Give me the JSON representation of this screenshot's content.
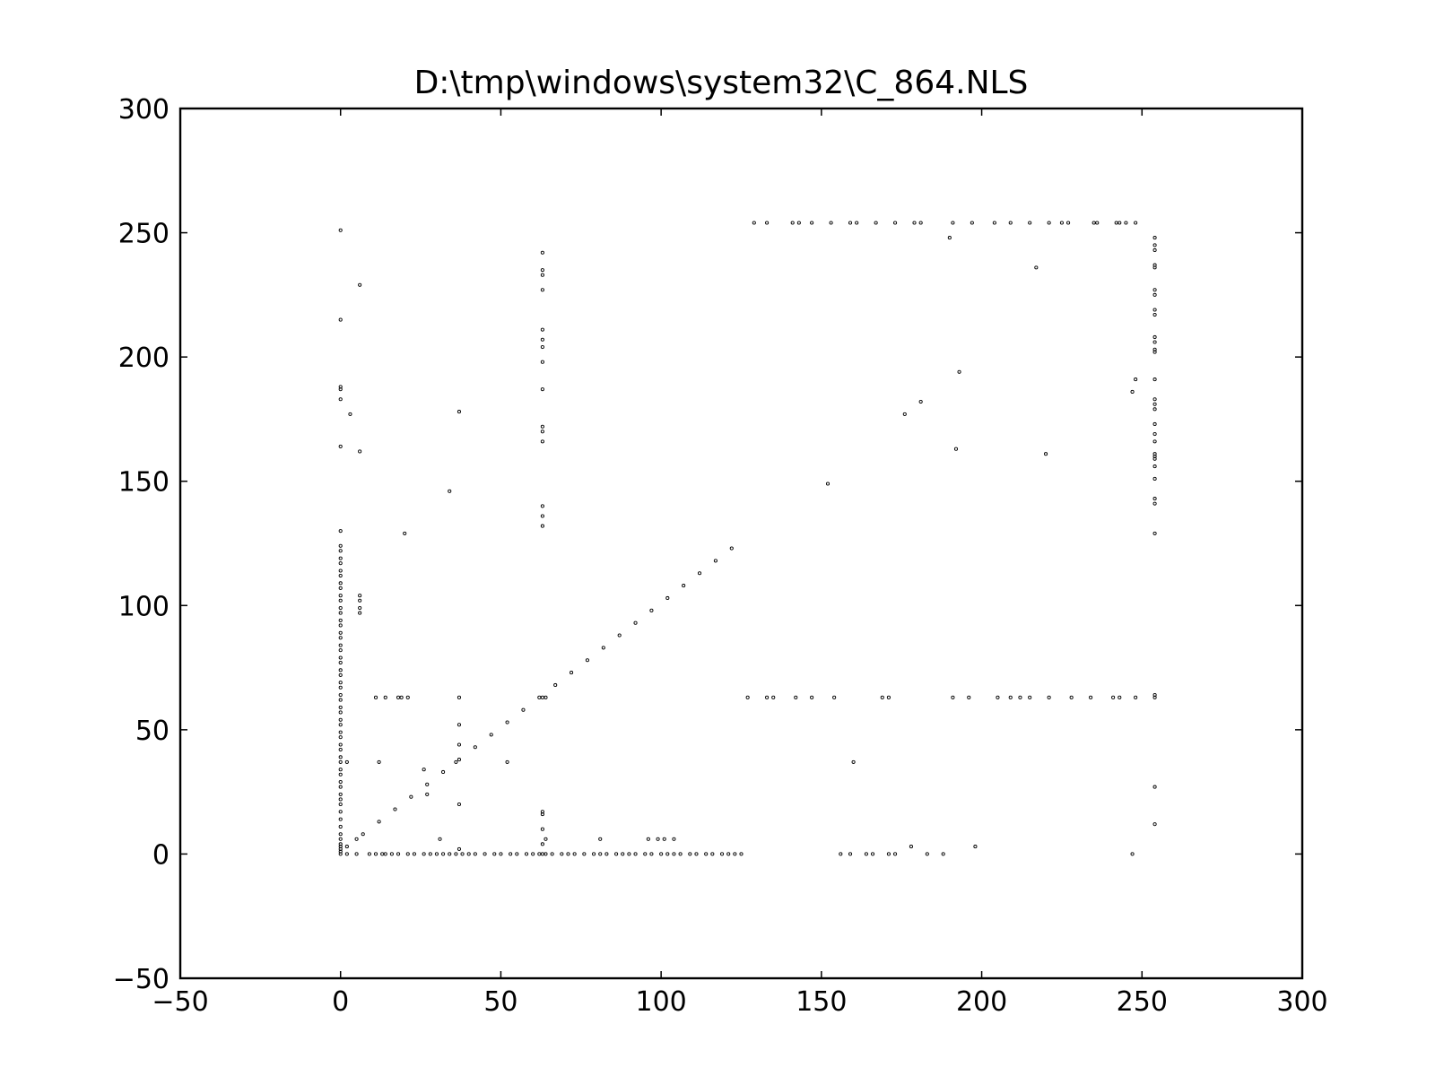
{
  "chart_data": {
    "type": "scatter",
    "title": "D:\\tmp\\windows\\system32\\C_864.NLS",
    "xlabel": "",
    "ylabel": "",
    "xlim": [
      -50,
      300
    ],
    "ylim": [
      -50,
      300
    ],
    "xticks": [
      -50,
      0,
      50,
      100,
      150,
      200,
      250,
      300
    ],
    "yticks": [
      -50,
      0,
      50,
      100,
      150,
      200,
      250,
      300
    ],
    "xtick_labels": [
      "−50",
      "0",
      "50",
      "100",
      "150",
      "200",
      "250",
      "300"
    ],
    "ytick_labels": [
      "−50",
      "0",
      "50",
      "100",
      "150",
      "200",
      "250",
      "300"
    ],
    "grid": false,
    "marker_color": "#000000",
    "points": [
      [
        0,
        0
      ],
      [
        0,
        1
      ],
      [
        0,
        2
      ],
      [
        0,
        3
      ],
      [
        0,
        4
      ],
      [
        0,
        6
      ],
      [
        0,
        8
      ],
      [
        0,
        11
      ],
      [
        0,
        14
      ],
      [
        0,
        17
      ],
      [
        0,
        20
      ],
      [
        0,
        22
      ],
      [
        0,
        24
      ],
      [
        0,
        27
      ],
      [
        0,
        29
      ],
      [
        0,
        32
      ],
      [
        0,
        34
      ],
      [
        0,
        37
      ],
      [
        0,
        39
      ],
      [
        0,
        42
      ],
      [
        0,
        44
      ],
      [
        0,
        47
      ],
      [
        0,
        49
      ],
      [
        0,
        52
      ],
      [
        0,
        54
      ],
      [
        0,
        57
      ],
      [
        0,
        59
      ],
      [
        0,
        62
      ],
      [
        0,
        64
      ],
      [
        0,
        67
      ],
      [
        0,
        69
      ],
      [
        0,
        72
      ],
      [
        0,
        74
      ],
      [
        0,
        77
      ],
      [
        0,
        79
      ],
      [
        0,
        82
      ],
      [
        0,
        84
      ],
      [
        0,
        87
      ],
      [
        0,
        89
      ],
      [
        0,
        92
      ],
      [
        0,
        94
      ],
      [
        0,
        97
      ],
      [
        0,
        99
      ],
      [
        0,
        102
      ],
      [
        0,
        104
      ],
      [
        0,
        107
      ],
      [
        0,
        109
      ],
      [
        0,
        112
      ],
      [
        0,
        114
      ],
      [
        0,
        117
      ],
      [
        0,
        119
      ],
      [
        0,
        122
      ],
      [
        0,
        124
      ],
      [
        0,
        130
      ],
      [
        0,
        164
      ],
      [
        0,
        183
      ],
      [
        0,
        187
      ],
      [
        0,
        188
      ],
      [
        0,
        215
      ],
      [
        0,
        251
      ],
      [
        2,
        0
      ],
      [
        2,
        3
      ],
      [
        2,
        37
      ],
      [
        3,
        177
      ],
      [
        5,
        0
      ],
      [
        5,
        6
      ],
      [
        6,
        97
      ],
      [
        6,
        99
      ],
      [
        6,
        102
      ],
      [
        6,
        104
      ],
      [
        6,
        162
      ],
      [
        6,
        229
      ],
      [
        7,
        8
      ],
      [
        9,
        0
      ],
      [
        11,
        0
      ],
      [
        11,
        63
      ],
      [
        12,
        13
      ],
      [
        12,
        37
      ],
      [
        13,
        0
      ],
      [
        14,
        0
      ],
      [
        14,
        63
      ],
      [
        16,
        0
      ],
      [
        17,
        18
      ],
      [
        18,
        0
      ],
      [
        18,
        63
      ],
      [
        19,
        63
      ],
      [
        20,
        129
      ],
      [
        21,
        0
      ],
      [
        21,
        63
      ],
      [
        22,
        23
      ],
      [
        23,
        0
      ],
      [
        26,
        0
      ],
      [
        26,
        34
      ],
      [
        27,
        24
      ],
      [
        27,
        28
      ],
      [
        28,
        0
      ],
      [
        30,
        0
      ],
      [
        31,
        6
      ],
      [
        32,
        0
      ],
      [
        32,
        33
      ],
      [
        34,
        0
      ],
      [
        34,
        146
      ],
      [
        36,
        0
      ],
      [
        36,
        37
      ],
      [
        37,
        2
      ],
      [
        37,
        20
      ],
      [
        37,
        38
      ],
      [
        37,
        44
      ],
      [
        37,
        52
      ],
      [
        37,
        63
      ],
      [
        37,
        178
      ],
      [
        38,
        0
      ],
      [
        40,
        0
      ],
      [
        42,
        0
      ],
      [
        42,
        43
      ],
      [
        45,
        0
      ],
      [
        47,
        48
      ],
      [
        48,
        0
      ],
      [
        50,
        0
      ],
      [
        52,
        37
      ],
      [
        52,
        53
      ],
      [
        53,
        0
      ],
      [
        55,
        0
      ],
      [
        57,
        58
      ],
      [
        58,
        0
      ],
      [
        60,
        0
      ],
      [
        62,
        0
      ],
      [
        62,
        63
      ],
      [
        63,
        0
      ],
      [
        63,
        4
      ],
      [
        63,
        10
      ],
      [
        63,
        16
      ],
      [
        63,
        17
      ],
      [
        63,
        63
      ],
      [
        63,
        132
      ],
      [
        63,
        136
      ],
      [
        63,
        140
      ],
      [
        63,
        166
      ],
      [
        63,
        170
      ],
      [
        63,
        172
      ],
      [
        63,
        187
      ],
      [
        63,
        198
      ],
      [
        63,
        204
      ],
      [
        63,
        207
      ],
      [
        63,
        211
      ],
      [
        63,
        227
      ],
      [
        63,
        233
      ],
      [
        63,
        235
      ],
      [
        63,
        242
      ],
      [
        64,
        0
      ],
      [
        64,
        6
      ],
      [
        64,
        63
      ],
      [
        66,
        0
      ],
      [
        67,
        68
      ],
      [
        69,
        0
      ],
      [
        71,
        0
      ],
      [
        72,
        73
      ],
      [
        73,
        0
      ],
      [
        76,
        0
      ],
      [
        77,
        78
      ],
      [
        79,
        0
      ],
      [
        81,
        0
      ],
      [
        81,
        6
      ],
      [
        82,
        83
      ],
      [
        83,
        0
      ],
      [
        86,
        0
      ],
      [
        87,
        88
      ],
      [
        88,
        0
      ],
      [
        90,
        0
      ],
      [
        92,
        0
      ],
      [
        92,
        93
      ],
      [
        95,
        0
      ],
      [
        96,
        6
      ],
      [
        97,
        0
      ],
      [
        97,
        98
      ],
      [
        99,
        6
      ],
      [
        100,
        0
      ],
      [
        101,
        6
      ],
      [
        102,
        0
      ],
      [
        102,
        103
      ],
      [
        104,
        0
      ],
      [
        104,
        6
      ],
      [
        106,
        0
      ],
      [
        107,
        108
      ],
      [
        109,
        0
      ],
      [
        111,
        0
      ],
      [
        112,
        113
      ],
      [
        114,
        0
      ],
      [
        116,
        0
      ],
      [
        117,
        118
      ],
      [
        119,
        0
      ],
      [
        121,
        0
      ],
      [
        122,
        123
      ],
      [
        123,
        0
      ],
      [
        125,
        0
      ],
      [
        127,
        63
      ],
      [
        129,
        254
      ],
      [
        133,
        63
      ],
      [
        133,
        254
      ],
      [
        135,
        63
      ],
      [
        141,
        254
      ],
      [
        142,
        63
      ],
      [
        143,
        254
      ],
      [
        147,
        63
      ],
      [
        147,
        254
      ],
      [
        152,
        149
      ],
      [
        153,
        254
      ],
      [
        154,
        63
      ],
      [
        156,
        0
      ],
      [
        159,
        0
      ],
      [
        159,
        254
      ],
      [
        160,
        37
      ],
      [
        161,
        254
      ],
      [
        164,
        0
      ],
      [
        166,
        0
      ],
      [
        167,
        254
      ],
      [
        169,
        63
      ],
      [
        171,
        0
      ],
      [
        171,
        63
      ],
      [
        173,
        0
      ],
      [
        173,
        254
      ],
      [
        176,
        177
      ],
      [
        178,
        3
      ],
      [
        179,
        254
      ],
      [
        181,
        182
      ],
      [
        181,
        254
      ],
      [
        183,
        0
      ],
      [
        188,
        0
      ],
      [
        190,
        248
      ],
      [
        191,
        63
      ],
      [
        191,
        254
      ],
      [
        192,
        163
      ],
      [
        193,
        194
      ],
      [
        196,
        63
      ],
      [
        197,
        254
      ],
      [
        198,
        3
      ],
      [
        205,
        63
      ],
      [
        204,
        254
      ],
      [
        209,
        63
      ],
      [
        209,
        254
      ],
      [
        212,
        63
      ],
      [
        215,
        63
      ],
      [
        215,
        254
      ],
      [
        217,
        236
      ],
      [
        220,
        161
      ],
      [
        221,
        63
      ],
      [
        221,
        254
      ],
      [
        225,
        254
      ],
      [
        227,
        254
      ],
      [
        228,
        63
      ],
      [
        234,
        63
      ],
      [
        235,
        254
      ],
      [
        236,
        254
      ],
      [
        241,
        63
      ],
      [
        242,
        254
      ],
      [
        243,
        63
      ],
      [
        243,
        254
      ],
      [
        245,
        254
      ],
      [
        247,
        0
      ],
      [
        247,
        186
      ],
      [
        248,
        63
      ],
      [
        248,
        191
      ],
      [
        248,
        254
      ],
      [
        254,
        12
      ],
      [
        254,
        27
      ],
      [
        254,
        63
      ],
      [
        254,
        64
      ],
      [
        254,
        129
      ],
      [
        254,
        141
      ],
      [
        254,
        143
      ],
      [
        254,
        151
      ],
      [
        254,
        156
      ],
      [
        254,
        159
      ],
      [
        254,
        160
      ],
      [
        254,
        161
      ],
      [
        254,
        166
      ],
      [
        254,
        169
      ],
      [
        254,
        173
      ],
      [
        254,
        179
      ],
      [
        254,
        181
      ],
      [
        254,
        183
      ],
      [
        254,
        191
      ],
      [
        254,
        202
      ],
      [
        254,
        203
      ],
      [
        254,
        206
      ],
      [
        254,
        208
      ],
      [
        254,
        217
      ],
      [
        254,
        219
      ],
      [
        254,
        225
      ],
      [
        254,
        227
      ],
      [
        254,
        236
      ],
      [
        254,
        237
      ],
      [
        254,
        243
      ],
      [
        254,
        245
      ],
      [
        254,
        248
      ]
    ]
  }
}
